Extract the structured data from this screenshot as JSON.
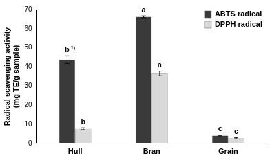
{
  "chart_data": {
    "type": "bar",
    "categories": [
      "Hull",
      "Bran",
      "Grain"
    ],
    "y_label": [
      "Radical scavenging activity",
      "(mg TE/g sample)"
    ],
    "series": [
      {
        "name": "ABTS radical",
        "color": "#3a3a3a",
        "values": [
          43.8,
          66.2,
          4.1
        ],
        "errors": [
          2.0,
          0.5,
          0.2
        ],
        "annotations": [
          "b 1)",
          "a",
          "c"
        ]
      },
      {
        "name": "DPPH radical",
        "color": "#d9d9d9",
        "values": [
          7.6,
          36.6,
          2.6
        ],
        "errors": [
          0.5,
          1.2,
          0.3
        ],
        "annotations": [
          "b",
          "a",
          "c"
        ]
      }
    ],
    "ylim": [
      0,
      70
    ],
    "yticks": [
      0,
      10,
      20,
      30,
      40,
      50,
      60,
      70
    ],
    "grid": false,
    "legend": "upper right"
  }
}
